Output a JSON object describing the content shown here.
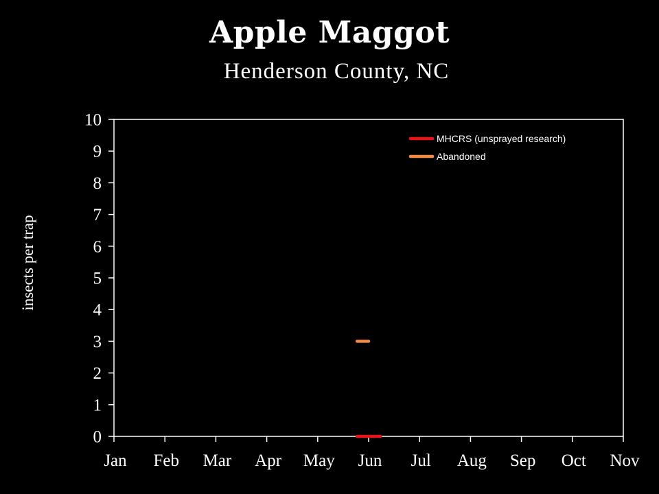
{
  "chart_data": {
    "type": "line",
    "title": "Apple Maggot",
    "subtitle": "Henderson County, NC",
    "ylabel": "insects per trap",
    "xlabel": "",
    "ylim": [
      0,
      10
    ],
    "yticks": [
      "0",
      "1",
      "2",
      "3",
      "4",
      "5",
      "6",
      "7",
      "8",
      "9",
      "10"
    ],
    "categories": [
      "Jan",
      "Feb",
      "Mar",
      "Apr",
      "May",
      "Jun",
      "Jul",
      "Aug",
      "Sep",
      "Oct",
      "Nov"
    ],
    "grid": false,
    "legend_position": "top-right",
    "series": [
      {
        "name": "MHCRS (unsprayed research)",
        "color": "#e8141b",
        "points": [
          {
            "x": "May 25",
            "y": 0
          },
          {
            "x": "Jun 8",
            "y": 0
          }
        ]
      },
      {
        "name": "Abandoned",
        "color": "#f08a45",
        "points": [
          {
            "x": "May 25",
            "y": 3
          },
          {
            "x": "Jun 1",
            "y": 3
          }
        ]
      }
    ]
  }
}
